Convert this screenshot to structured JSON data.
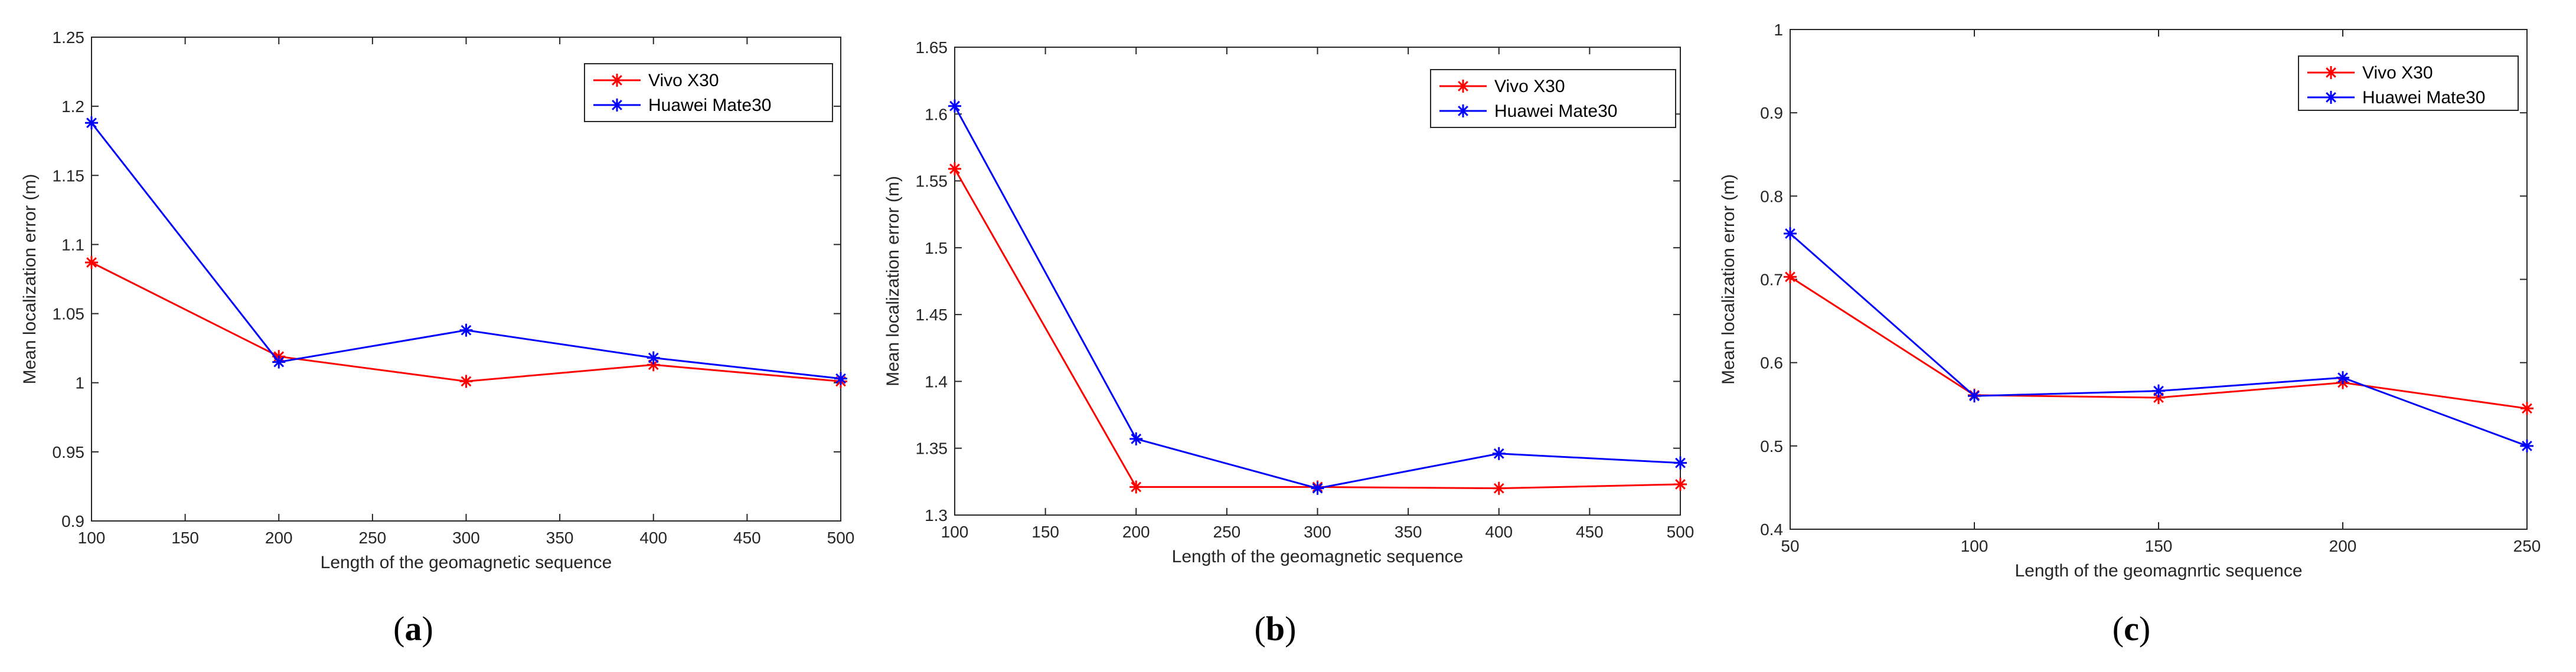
{
  "colors": {
    "vivo": "#ff0000",
    "huawei": "#0000ff",
    "axis": "#262626"
  },
  "chart_data": [
    {
      "type": "line",
      "panel_label": "a",
      "xlabel": "Length of the geomagnetic sequence",
      "ylabel": "Mean localization error (m)",
      "x": [
        100,
        200,
        300,
        400,
        500
      ],
      "xlim": [
        100,
        500
      ],
      "ylim": [
        0.9,
        1.25
      ],
      "xticks": [
        "100",
        "150",
        "200",
        "250",
        "300",
        "350",
        "400",
        "450",
        "500"
      ],
      "yticks": [
        "0.9",
        "0.95",
        "1",
        "1.05",
        "1.1",
        "1.15",
        "1.2",
        "1.25"
      ],
      "legend_position": "top-right",
      "grid": false,
      "series": [
        {
          "name": "Vivo X30",
          "color": "#ff0000",
          "values": [
            1.087,
            1.019,
            1.001,
            1.013,
            1.001
          ]
        },
        {
          "name": "Huawei Mate30",
          "color": "#0000ff",
          "values": [
            1.188,
            1.015,
            1.038,
            1.018,
            1.003
          ]
        }
      ]
    },
    {
      "type": "line",
      "panel_label": "b",
      "xlabel": "Length of the geomagnetic sequence",
      "ylabel": "Mean localization error (m)",
      "x": [
        100,
        200,
        300,
        400,
        500
      ],
      "xlim": [
        100,
        500
      ],
      "ylim": [
        1.3,
        1.65
      ],
      "xticks": [
        "100",
        "150",
        "200",
        "250",
        "300",
        "350",
        "400",
        "450",
        "500"
      ],
      "yticks": [
        "1.3",
        "1.35",
        "1.4",
        "1.45",
        "1.5",
        "1.55",
        "1.6",
        "1.65"
      ],
      "legend_position": "top-right",
      "grid": false,
      "series": [
        {
          "name": "Vivo X30",
          "color": "#ff0000",
          "values": [
            1.559,
            1.321,
            1.321,
            1.32,
            1.323
          ]
        },
        {
          "name": "Huawei Mate30",
          "color": "#0000ff",
          "values": [
            1.606,
            1.357,
            1.32,
            1.346,
            1.339
          ]
        }
      ]
    },
    {
      "type": "line",
      "panel_label": "c",
      "xlabel": "Length of the geomagnrtic sequence",
      "ylabel": "Mean localization error (m)",
      "x": [
        50,
        100,
        150,
        200,
        250
      ],
      "xlim": [
        50,
        250
      ],
      "ylim": [
        0.4,
        1.0
      ],
      "xticks": [
        "50",
        "100",
        "150",
        "200",
        "250"
      ],
      "yticks": [
        "0.4",
        "0.5",
        "0.6",
        "0.7",
        "0.8",
        "0.9",
        "1"
      ],
      "legend_position": "top-right",
      "grid": false,
      "series": [
        {
          "name": "Vivo X30",
          "color": "#ff0000",
          "values": [
            0.703,
            0.561,
            0.558,
            0.576,
            0.545
          ]
        },
        {
          "name": "Huawei Mate30",
          "color": "#0000ff",
          "values": [
            0.755,
            0.56,
            0.566,
            0.582,
            0.5
          ]
        }
      ]
    }
  ]
}
